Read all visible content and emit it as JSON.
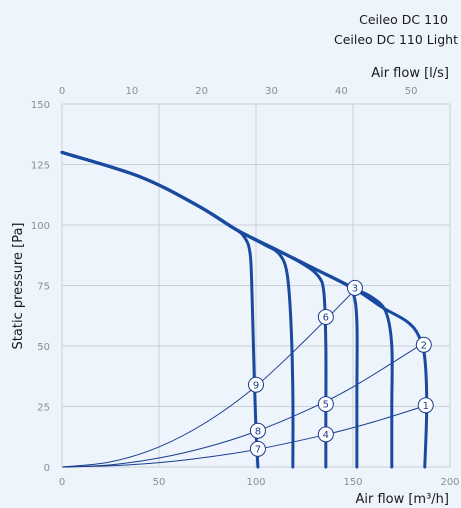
{
  "chart_data": {
    "type": "line",
    "title_lines": [
      "Ceileo DC 110",
      "Ceileo DC 110 Light"
    ],
    "xlabel": "Air flow [m³/h]",
    "x2label": "Air flow [l/s]",
    "ylabel": "Static pressure [Pa]",
    "xlim": [
      0,
      200
    ],
    "ylim": [
      0,
      150
    ],
    "x2lim": [
      0,
      55.56
    ],
    "xticks": [
      "0",
      "50",
      "100",
      "150",
      "200"
    ],
    "xtick_values": [
      0,
      50,
      100,
      150,
      200
    ],
    "x2ticks": [
      "0",
      "10",
      "20",
      "30",
      "40",
      "50"
    ],
    "x2tick_values": [
      0,
      10,
      20,
      30,
      40,
      50
    ],
    "yticks": [
      "0",
      "25",
      "50",
      "75",
      "100",
      "125",
      "150"
    ],
    "ytick_values": [
      0,
      25,
      50,
      75,
      100,
      125,
      150
    ],
    "grid": true,
    "colors": {
      "curve": "#1a4aa0",
      "system": "#1a3d8f",
      "grid": "#c9d0d8"
    },
    "fan_curves": [
      {
        "points": [
          [
            0,
            130
          ],
          [
            40,
            120
          ],
          [
            70,
            108
          ],
          [
            88,
            99
          ],
          [
            94,
            95
          ],
          [
            97,
            88
          ],
          [
            98,
            70
          ],
          [
            99,
            40
          ],
          [
            100,
            15
          ],
          [
            101,
            0
          ]
        ]
      },
      {
        "points": [
          [
            0,
            130
          ],
          [
            40,
            120
          ],
          [
            70,
            108
          ],
          [
            90,
            98
          ],
          [
            104,
            92
          ],
          [
            112,
            88
          ],
          [
            116,
            80
          ],
          [
            118,
            60
          ],
          [
            119,
            30
          ],
          [
            119,
            0
          ]
        ]
      },
      {
        "points": [
          [
            0,
            130
          ],
          [
            40,
            120
          ],
          [
            70,
            108
          ],
          [
            90,
            98
          ],
          [
            110,
            90
          ],
          [
            124,
            84
          ],
          [
            132,
            79
          ],
          [
            135,
            72
          ],
          [
            136,
            50
          ],
          [
            136,
            20
          ],
          [
            136,
            0
          ]
        ]
      },
      {
        "points": [
          [
            0,
            130
          ],
          [
            40,
            120
          ],
          [
            70,
            108
          ],
          [
            90,
            98
          ],
          [
            110,
            90
          ],
          [
            130,
            82
          ],
          [
            145,
            76
          ],
          [
            150,
            72
          ],
          [
            152,
            60
          ],
          [
            152,
            30
          ],
          [
            152,
            0
          ]
        ]
      },
      {
        "points": [
          [
            0,
            130
          ],
          [
            40,
            120
          ],
          [
            70,
            108
          ],
          [
            90,
            98
          ],
          [
            110,
            90
          ],
          [
            130,
            82
          ],
          [
            150,
            74
          ],
          [
            160,
            70
          ],
          [
            167,
            64
          ],
          [
            170,
            50
          ],
          [
            170,
            25
          ],
          [
            170,
            0
          ]
        ]
      },
      {
        "points": [
          [
            0,
            130
          ],
          [
            40,
            120
          ],
          [
            70,
            108
          ],
          [
            90,
            98
          ],
          [
            110,
            90
          ],
          [
            130,
            82
          ],
          [
            150,
            74
          ],
          [
            165,
            66
          ],
          [
            178,
            60
          ],
          [
            184,
            54
          ],
          [
            187,
            45
          ],
          [
            188,
            25
          ],
          [
            187,
            0
          ]
        ]
      }
    ],
    "system_curves": [
      {
        "points": [
          [
            0,
            0
          ],
          [
            25,
            2.1
          ],
          [
            50,
            8.3
          ],
          [
            75,
            18.8
          ],
          [
            100,
            33.4
          ],
          [
            125,
            52.1
          ],
          [
            152,
            74
          ]
        ]
      },
      {
        "points": [
          [
            0,
            0
          ],
          [
            25,
            0.9
          ],
          [
            50,
            3.7
          ],
          [
            75,
            8.3
          ],
          [
            100,
            14.7
          ],
          [
            125,
            23
          ],
          [
            150,
            33.1
          ],
          [
            187,
            51.5
          ]
        ]
      },
      {
        "points": [
          [
            0,
            0
          ],
          [
            25,
            0.5
          ],
          [
            50,
            1.8
          ],
          [
            75,
            4.1
          ],
          [
            100,
            7.2
          ],
          [
            136,
            13.4
          ],
          [
            160,
            18.5
          ],
          [
            188,
            25.5
          ]
        ]
      }
    ],
    "markers": [
      {
        "label": "1",
        "x": 187.5,
        "y": 25.5
      },
      {
        "label": "2",
        "x": 186.5,
        "y": 50.5
      },
      {
        "label": "3",
        "x": 151,
        "y": 74
      },
      {
        "label": "4",
        "x": 136,
        "y": 13.5
      },
      {
        "label": "5",
        "x": 136,
        "y": 26
      },
      {
        "label": "6",
        "x": 136,
        "y": 62
      },
      {
        "label": "7",
        "x": 101,
        "y": 7.5
      },
      {
        "label": "8",
        "x": 101,
        "y": 15
      },
      {
        "label": "9",
        "x": 100,
        "y": 34
      }
    ]
  }
}
